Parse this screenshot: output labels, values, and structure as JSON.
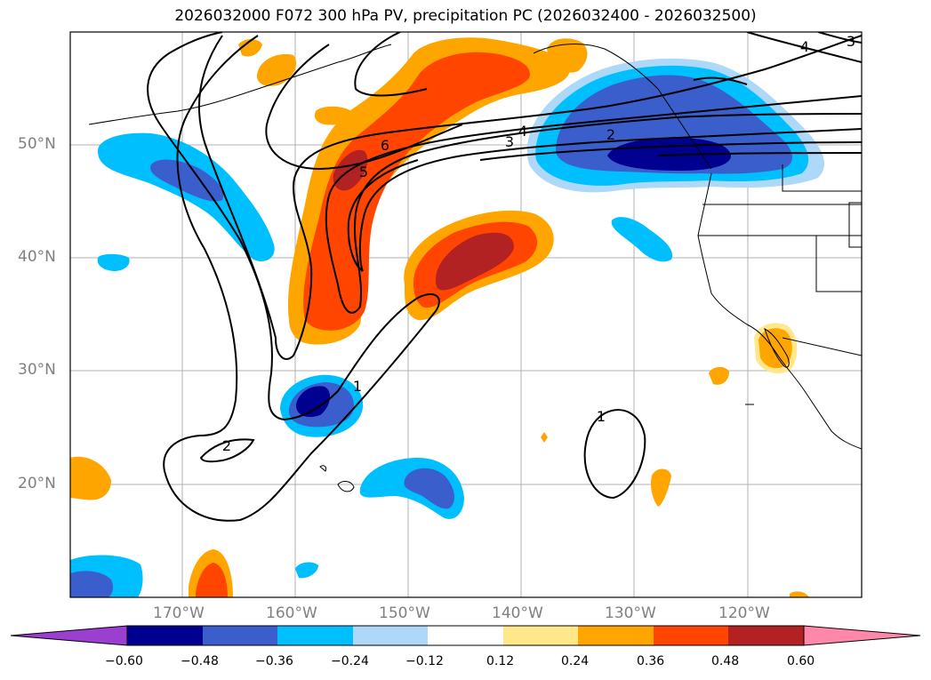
{
  "title": "2026032000 F072 300 hPa PV, precipitation PC (2026032400 - 2026032500)",
  "lat_labels": [
    "50°N",
    "40°N",
    "30°N",
    "20°N"
  ],
  "lon_labels": [
    "170°W",
    "160°W",
    "150°W",
    "140°W",
    "130°W",
    "120°W"
  ],
  "contour_labels": [
    "1",
    "1",
    "2",
    "2",
    "3",
    "3",
    "4",
    "4",
    "5",
    "6"
  ],
  "colorbar": {
    "ticks": [
      "−0.60",
      "−0.48",
      "−0.36",
      "−0.24",
      "−0.12",
      "0.12",
      "0.24",
      "0.36",
      "0.48",
      "0.60"
    ],
    "colors": [
      "#9b3fd1",
      "#000090",
      "#3a5fcd",
      "#00bfff",
      "#add8f7",
      "#ffffff",
      "#ffe78a",
      "#ffa500",
      "#ff4500",
      "#b22222",
      "#ff88aa"
    ]
  },
  "map_colors": {
    "dark_blue": "#000090",
    "mid_blue": "#3a5fcd",
    "cyan": "#00bfff",
    "light_blue": "#add8f7",
    "light_yellow": "#ffe78a",
    "orange": "#ffa500",
    "red_orange": "#ff4500",
    "dark_red": "#b22222"
  }
}
